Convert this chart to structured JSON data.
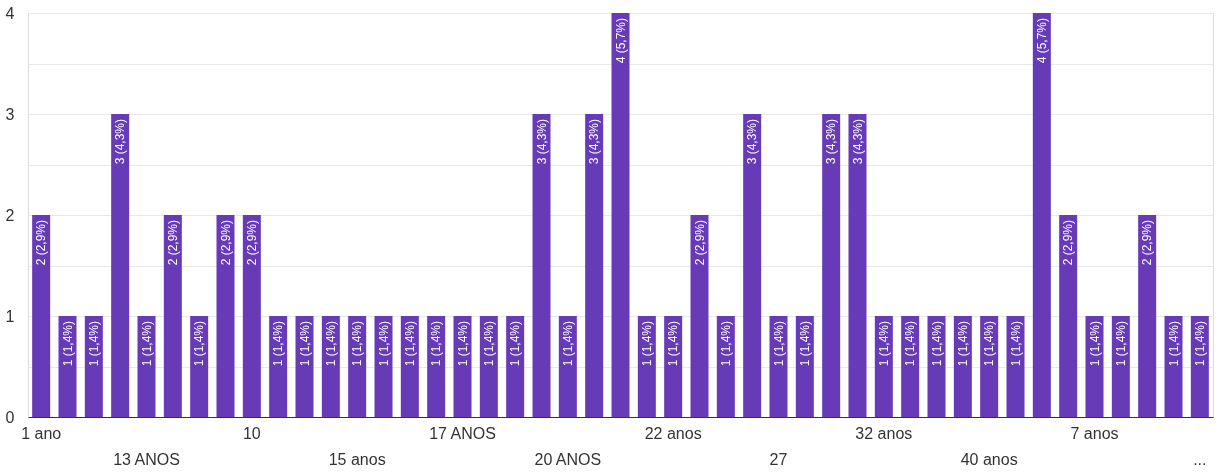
{
  "chart_data": {
    "type": "bar",
    "categories": [
      "1 ano",
      null,
      null,
      null,
      "13 ANOS",
      null,
      null,
      null,
      "10",
      null,
      null,
      null,
      "15 anos",
      null,
      null,
      null,
      "17 ANOS",
      null,
      null,
      null,
      "20 ANOS",
      null,
      null,
      null,
      "22 anos",
      null,
      null,
      null,
      "27",
      null,
      null,
      null,
      "32 anos",
      null,
      null,
      null,
      "40 anos",
      null,
      null,
      null,
      "7 anos",
      null,
      null,
      null,
      "..."
    ],
    "values": [
      2,
      1,
      1,
      3,
      1,
      2,
      1,
      2,
      2,
      1,
      1,
      1,
      1,
      1,
      1,
      1,
      1,
      1,
      1,
      3,
      1,
      3,
      4,
      1,
      1,
      2,
      1,
      3,
      1,
      1,
      3,
      3,
      1,
      1,
      1,
      1,
      1,
      1,
      4,
      2,
      1,
      1,
      2,
      1,
      1
    ],
    "value_labels": [
      "2 (2,9%)",
      "1 (1,4%)",
      "1 (1,4%)",
      "3 (4,3%)",
      "1 (1,4%)",
      "2 (2,9%)",
      "1 (1,4%)",
      "2 (2,9%)",
      "2 (2,9%)",
      "1 (1,4%)",
      "1 (1,4%)",
      "1 (1,4%)",
      "1 (1,4%)",
      "1 (1,4%)",
      "1 (1,4%)",
      "1 (1,4%)",
      "1 (1,4%)",
      "1 (1,4%)",
      "1 (1,4%)",
      "3 (4,3%)",
      "1 (1,4%)",
      "3 (4,3%)",
      "4 (5,7%)",
      "1 (1,4%)",
      "1 (1,4%)",
      "2 (2,9%)",
      "1 (1,4%)",
      "3 (4,3%)",
      "1 (1,4%)",
      "1 (1,4%)",
      "3 (4,3%)",
      "3 (4,3%)",
      "1 (1,4%)",
      "1 (1,4%)",
      "1 (1,4%)",
      "1 (1,4%)",
      "1 (1,4%)",
      "1 (1,4%)",
      "4 (5,7%)",
      "2 (2,9%)",
      "1 (1,4%)",
      "1 (1,4%)",
      "2 (2,9%)",
      "1 (1,4%)",
      "1 (1,4%)"
    ],
    "color": "#673ab7",
    "ylim": [
      0,
      4
    ],
    "yticks": [
      0,
      {
        "value": 0.5,
        "label": null
      },
      1,
      {
        "value": 1.5,
        "label": null
      },
      2,
      {
        "value": 2.5,
        "label": null
      },
      3,
      {
        "value": 3.5,
        "label": null
      },
      4
    ],
    "grid": "y"
  }
}
